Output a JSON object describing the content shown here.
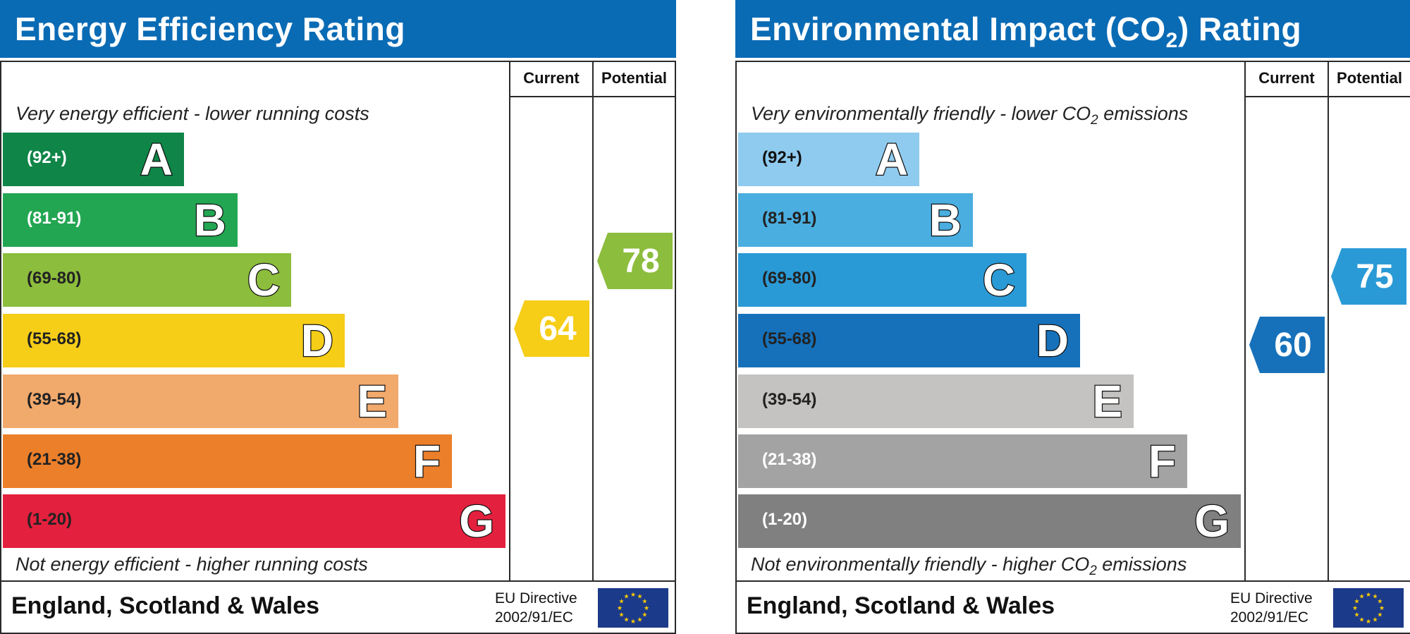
{
  "energy": {
    "title": "Energy Efficiency Rating",
    "current_label": "Current",
    "potential_label": "Potential",
    "top_note": "Very energy efficient - lower running costs",
    "bottom_note": "Not energy efficient - higher running costs",
    "bands": [
      {
        "range": "(92+)",
        "letter": "A",
        "color": "#0f8548",
        "text_color": "#ffffff"
      },
      {
        "range": "(81-91)",
        "letter": "B",
        "color": "#23a652",
        "text_color": "#ffffff"
      },
      {
        "range": "(69-80)",
        "letter": "C",
        "color": "#8cbd3d",
        "text_color": "#222222"
      },
      {
        "range": "(55-68)",
        "letter": "D",
        "color": "#f6cd17",
        "text_color": "#222222"
      },
      {
        "range": "(39-54)",
        "letter": "E",
        "color": "#f2a96c",
        "text_color": "#222222"
      },
      {
        "range": "(21-38)",
        "letter": "F",
        "color": "#ec7f2a",
        "text_color": "#222222"
      },
      {
        "range": "(1-20)",
        "letter": "G",
        "color": "#e3203d",
        "text_color": "#222222"
      }
    ],
    "current": {
      "value": "64",
      "color": "#f6cd17"
    },
    "potential": {
      "value": "78",
      "color": "#8cbd3d"
    },
    "region": "England, Scotland & Wales",
    "directive_line1": "EU Directive",
    "directive_line2": "2002/91/EC"
  },
  "environment": {
    "title_pre": "Environmental Impact (CO",
    "title_sub": "2",
    "title_post": ") Rating",
    "current_label": "Current",
    "potential_label": "Potential",
    "top_note_pre": "Very environmentally friendly - lower CO",
    "top_note_sub": "2",
    "top_note_post": " emissions",
    "bottom_note_pre": "Not environmentally friendly - higher CO",
    "bottom_note_sub": "2",
    "bottom_note_post": " emissions",
    "bands": [
      {
        "range": "(92+)",
        "letter": "A",
        "color": "#8fcbef",
        "text_color": "#111111"
      },
      {
        "range": "(81-91)",
        "letter": "B",
        "color": "#4aaee0",
        "text_color": "#222222"
      },
      {
        "range": "(69-80)",
        "letter": "C",
        "color": "#2a9ad6",
        "text_color": "#222222"
      },
      {
        "range": "(55-68)",
        "letter": "D",
        "color": "#1671ba",
        "text_color": "#222222"
      },
      {
        "range": "(39-54)",
        "letter": "E",
        "color": "#c4c3c1",
        "text_color": "#222222"
      },
      {
        "range": "(21-38)",
        "letter": "F",
        "color": "#a3a3a3",
        "text_color": "#ffffff"
      },
      {
        "range": "(1-20)",
        "letter": "G",
        "color": "#808080",
        "text_color": "#ffffff"
      }
    ],
    "current": {
      "value": "60",
      "color": "#1671ba"
    },
    "potential": {
      "value": "75",
      "color": "#2a9ad6"
    },
    "region": "England, Scotland & Wales",
    "directive_line1": "EU Directive",
    "directive_line2": "2002/91/EC"
  }
}
